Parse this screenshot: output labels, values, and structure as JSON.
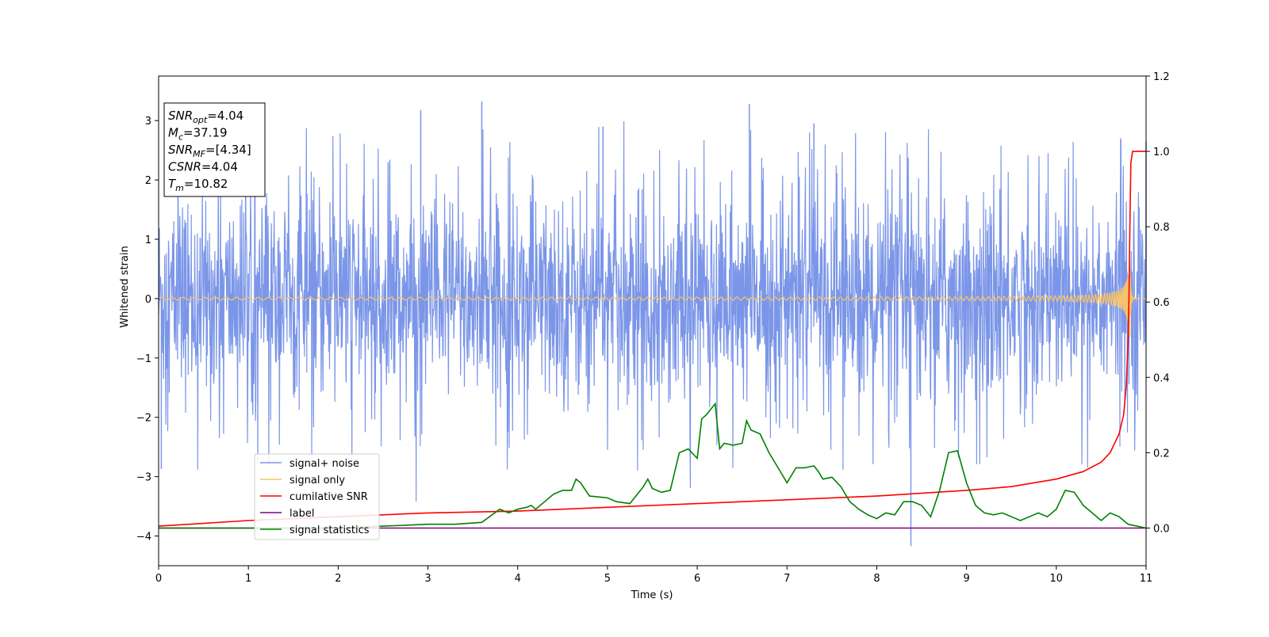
{
  "chart_data": {
    "type": "line",
    "xlabel": "Time (s)",
    "ylabel": "Whitened strain",
    "xlim": [
      0,
      11
    ],
    "ylim_left": [
      -4.5,
      3.75
    ],
    "ylim_right": [
      -0.1,
      1.2
    ],
    "x_ticks": [
      0,
      1,
      2,
      3,
      4,
      5,
      6,
      7,
      8,
      9,
      10,
      11
    ],
    "y_ticks_left": [
      -4,
      -3,
      -2,
      -1,
      0,
      1,
      2,
      3
    ],
    "y_ticks_right": [
      0.0,
      0.2,
      0.4,
      0.6,
      0.8,
      1.0,
      1.2
    ],
    "y_tick_labels_left": [
      "−4",
      "−3",
      "−2",
      "−1",
      "0",
      "1",
      "2",
      "3"
    ],
    "y_tick_labels_right": [
      "0.0",
      "0.2",
      "0.4",
      "0.6",
      "0.8",
      "1.0",
      "1.2"
    ],
    "grid": false,
    "legend_position": "lower-left",
    "info_box": {
      "lines": [
        {
          "sym": "SNR",
          "sub": "opt",
          "val": "=4.04"
        },
        {
          "sym": "M",
          "sub": "c",
          "val": "=37.19"
        },
        {
          "sym": "SNR",
          "sub": "MF",
          "val": "=[4.34]"
        },
        {
          "sym": "CSNR",
          "sub": "",
          "val": "=4.04"
        },
        {
          "sym": "T",
          "sub": "m",
          "val": "=10.82"
        }
      ]
    },
    "series": [
      {
        "name": "signal+ noise",
        "color": "#7b96e8",
        "axis": "left",
        "kind": "noise",
        "description_values": {
          "typical_abs_max": 2.5,
          "peak_max": 3.32,
          "peak_min": -4.17
        }
      },
      {
        "name": "signal only",
        "color": "#f5c36b",
        "axis": "left",
        "kind": "chirp",
        "description_values": {
          "merger_time": 10.82,
          "peak_amplitude": 0.75
        }
      },
      {
        "name": "cumilative SNR",
        "color": "#ff0000",
        "axis": "right",
        "x": [
          0,
          1,
          2,
          3,
          4,
          5,
          6,
          7,
          8,
          9,
          9.5,
          10,
          10.3,
          10.5,
          10.6,
          10.7,
          10.75,
          10.78,
          10.8,
          10.81,
          10.82,
          10.83,
          10.85,
          11
        ],
        "y": [
          0.005,
          0.02,
          0.03,
          0.04,
          0.045,
          0.055,
          0.065,
          0.075,
          0.085,
          0.1,
          0.11,
          0.13,
          0.15,
          0.175,
          0.2,
          0.25,
          0.3,
          0.38,
          0.5,
          0.62,
          0.8,
          0.97,
          1.0,
          1.0
        ]
      },
      {
        "name": "label",
        "color": "#800080",
        "axis": "right",
        "x": [
          0,
          11
        ],
        "y": [
          0,
          0
        ]
      },
      {
        "name": "signal statistics",
        "color": "#008000",
        "axis": "right",
        "x": [
          0,
          1,
          2,
          2.5,
          3,
          3.3,
          3.6,
          3.8,
          3.9,
          4.0,
          4.1,
          4.15,
          4.2,
          4.3,
          4.4,
          4.5,
          4.6,
          4.65,
          4.7,
          4.8,
          5.0,
          5.1,
          5.25,
          5.3,
          5.4,
          5.45,
          5.5,
          5.6,
          5.7,
          5.8,
          5.9,
          6.0,
          6.05,
          6.1,
          6.2,
          6.25,
          6.3,
          6.4,
          6.5,
          6.55,
          6.6,
          6.7,
          6.8,
          6.9,
          7.0,
          7.1,
          7.2,
          7.3,
          7.35,
          7.4,
          7.5,
          7.6,
          7.7,
          7.8,
          7.9,
          8.0,
          8.1,
          8.2,
          8.3,
          8.4,
          8.5,
          8.6,
          8.7,
          8.8,
          8.9,
          9.0,
          9.1,
          9.2,
          9.3,
          9.4,
          9.5,
          9.6,
          9.7,
          9.8,
          9.9,
          10.0,
          10.1,
          10.2,
          10.3,
          10.4,
          10.5,
          10.6,
          10.7,
          10.8,
          11
        ],
        "y": [
          0.0,
          0.0,
          0.0,
          0.005,
          0.01,
          0.01,
          0.015,
          0.05,
          0.04,
          0.05,
          0.055,
          0.06,
          0.05,
          0.07,
          0.09,
          0.1,
          0.1,
          0.13,
          0.12,
          0.085,
          0.08,
          0.07,
          0.065,
          0.08,
          0.11,
          0.13,
          0.105,
          0.095,
          0.1,
          0.2,
          0.21,
          0.185,
          0.29,
          0.3,
          0.33,
          0.21,
          0.225,
          0.22,
          0.225,
          0.285,
          0.26,
          0.25,
          0.2,
          0.16,
          0.12,
          0.16,
          0.16,
          0.165,
          0.15,
          0.13,
          0.135,
          0.11,
          0.07,
          0.05,
          0.035,
          0.025,
          0.04,
          0.035,
          0.07,
          0.07,
          0.06,
          0.03,
          0.1,
          0.2,
          0.205,
          0.12,
          0.06,
          0.04,
          0.035,
          0.04,
          0.03,
          0.02,
          0.03,
          0.04,
          0.03,
          0.05,
          0.1,
          0.095,
          0.06,
          0.04,
          0.02,
          0.04,
          0.03,
          0.01,
          0.0
        ]
      }
    ]
  }
}
